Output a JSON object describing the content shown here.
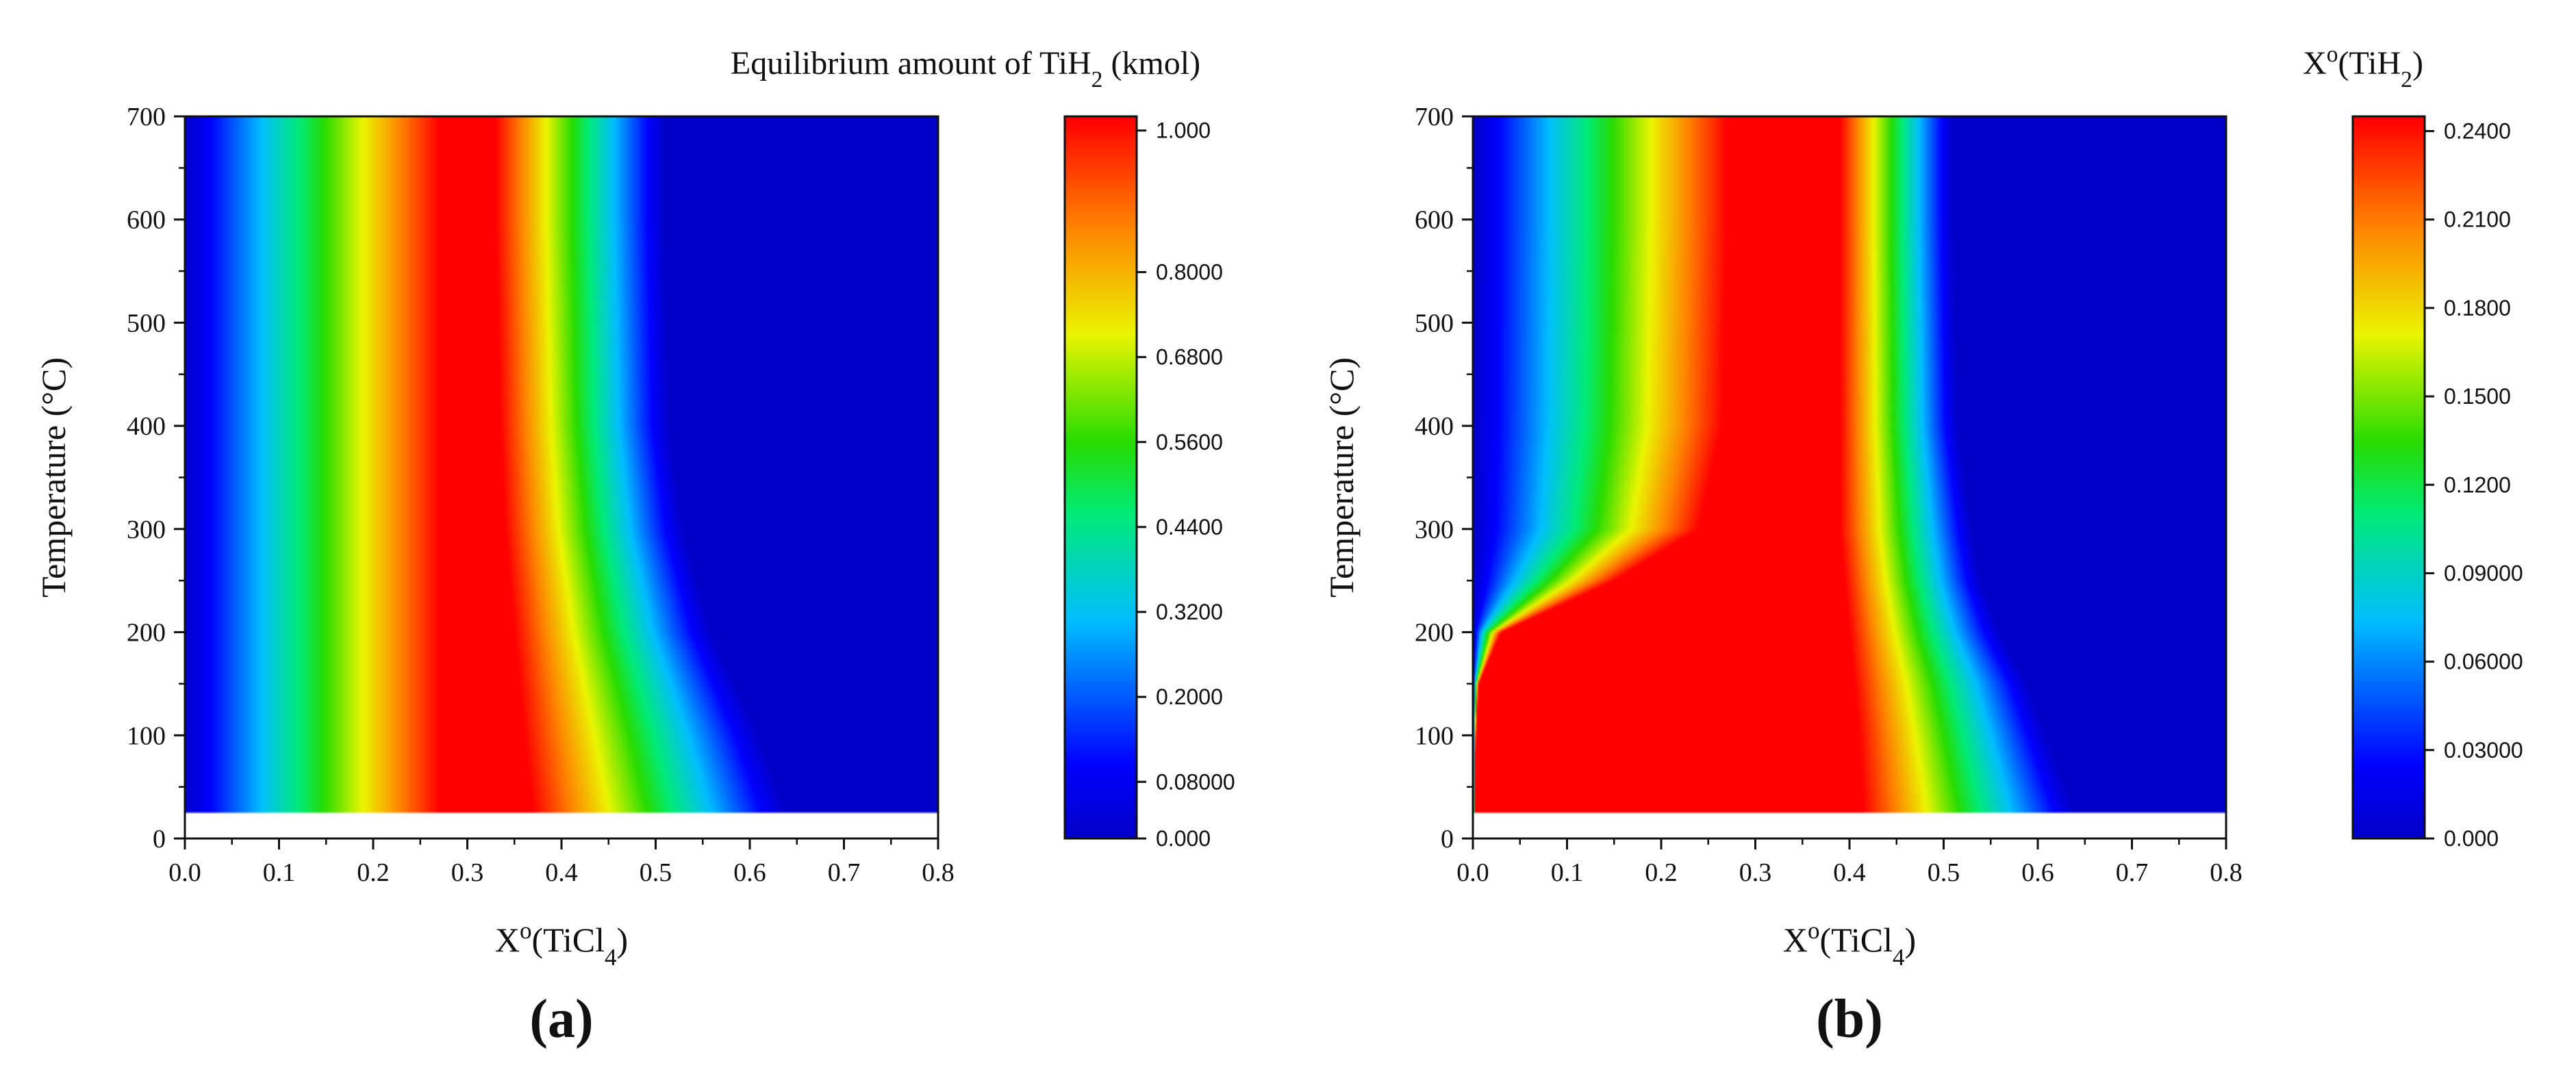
{
  "chart_data": [
    {
      "type": "heatmap",
      "panel_label": "(a)",
      "colorbar_title": "Equilibrium amount of TiH2 (kmol)",
      "xlabel": "X°(TiCl4)",
      "ylabel": "Temperature (°C)",
      "xlim": [
        0.0,
        0.8
      ],
      "ylim": [
        0,
        700
      ],
      "x_ticks": [
        "0.0",
        "0.1",
        "0.2",
        "0.3",
        "0.4",
        "0.5",
        "0.6",
        "0.7",
        "0.8"
      ],
      "y_ticks": [
        "0",
        "100",
        "200",
        "300",
        "400",
        "500",
        "600",
        "700"
      ],
      "data_min_temperature": 25,
      "colorbar_range": [
        0,
        1.02
      ],
      "colorbar_ticks": [
        {
          "value": 0.0,
          "label": "0.000"
        },
        {
          "value": 0.08,
          "label": "0.08000"
        },
        {
          "value": 0.2,
          "label": "0.2000"
        },
        {
          "value": 0.32,
          "label": "0.3200"
        },
        {
          "value": 0.44,
          "label": "0.4400"
        },
        {
          "value": 0.56,
          "label": "0.5600"
        },
        {
          "value": 0.68,
          "label": "0.6800"
        },
        {
          "value": 0.8,
          "label": "0.8000"
        },
        {
          "value": 1.0,
          "label": "1.000"
        }
      ],
      "peak": {
        "value": 1.02,
        "edges_by_temperature": [
          {
            "t": 700,
            "rise_start": 0.0,
            "plateau_start": 0.27,
            "plateau_end": 0.33,
            "zero_at": 0.51
          },
          {
            "t": 600,
            "rise_start": 0.0,
            "plateau_start": 0.27,
            "plateau_end": 0.33,
            "zero_at": 0.51
          },
          {
            "t": 400,
            "rise_start": 0.0,
            "plateau_start": 0.27,
            "plateau_end": 0.335,
            "zero_at": 0.515
          },
          {
            "t": 300,
            "rise_start": 0.0,
            "plateau_start": 0.27,
            "plateau_end": 0.34,
            "zero_at": 0.53
          },
          {
            "t": 200,
            "rise_start": 0.0,
            "plateau_start": 0.27,
            "plateau_end": 0.35,
            "zero_at": 0.56
          },
          {
            "t": 100,
            "rise_start": 0.0,
            "plateau_start": 0.27,
            "plateau_end": 0.36,
            "zero_at": 0.61
          },
          {
            "t": 25,
            "rise_start": 0.0,
            "plateau_start": 0.27,
            "plateau_end": 0.37,
            "zero_at": 0.64
          }
        ]
      }
    },
    {
      "type": "heatmap",
      "panel_label": "(b)",
      "colorbar_title": "X°(TiH2)",
      "xlabel": "X°(TiCl4)",
      "ylabel": "Temperature (°C)",
      "xlim": [
        0.0,
        0.8
      ],
      "ylim": [
        0,
        700
      ],
      "x_ticks": [
        "0.0",
        "0.1",
        "0.2",
        "0.3",
        "0.4",
        "0.5",
        "0.6",
        "0.7",
        "0.8"
      ],
      "y_ticks": [
        "0",
        "100",
        "200",
        "300",
        "400",
        "500",
        "600",
        "700"
      ],
      "data_min_temperature": 25,
      "colorbar_range": [
        0,
        0.245
      ],
      "colorbar_ticks": [
        {
          "value": 0.0,
          "label": "0.000"
        },
        {
          "value": 0.03,
          "label": "0.03000"
        },
        {
          "value": 0.06,
          "label": "0.06000"
        },
        {
          "value": 0.09,
          "label": "0.09000"
        },
        {
          "value": 0.12,
          "label": "0.1200"
        },
        {
          "value": 0.15,
          "label": "0.1500"
        },
        {
          "value": 0.18,
          "label": "0.1800"
        },
        {
          "value": 0.21,
          "label": "0.2100"
        },
        {
          "value": 0.24,
          "label": "0.2400"
        }
      ],
      "peak": {
        "value": 0.245,
        "edges_by_temperature": [
          {
            "t": 700,
            "rise_start": 0.0,
            "plateau_start": 0.27,
            "plateau_end": 0.39,
            "zero_at": 0.51
          },
          {
            "t": 600,
            "rise_start": 0.0,
            "plateau_start": 0.27,
            "plateau_end": 0.39,
            "zero_at": 0.51
          },
          {
            "t": 400,
            "rise_start": 0.0,
            "plateau_start": 0.265,
            "plateau_end": 0.39,
            "zero_at": 0.515
          },
          {
            "t": 300,
            "rise_start": 0.0,
            "plateau_start": 0.24,
            "plateau_end": 0.39,
            "zero_at": 0.53
          },
          {
            "t": 250,
            "rise_start": 0.0,
            "plateau_start": 0.15,
            "plateau_end": 0.395,
            "zero_at": 0.54
          },
          {
            "t": 200,
            "rise_start": 0.0,
            "plateau_start": 0.03,
            "plateau_end": 0.4,
            "zero_at": 0.56
          },
          {
            "t": 150,
            "rise_start": 0.0,
            "plateau_start": 0.006,
            "plateau_end": 0.405,
            "zero_at": 0.59
          },
          {
            "t": 100,
            "rise_start": 0.0,
            "plateau_start": 0.003,
            "plateau_end": 0.41,
            "zero_at": 0.61
          },
          {
            "t": 25,
            "rise_start": 0.0,
            "plateau_start": 0.002,
            "plateau_end": 0.415,
            "zero_at": 0.64
          }
        ]
      }
    }
  ]
}
